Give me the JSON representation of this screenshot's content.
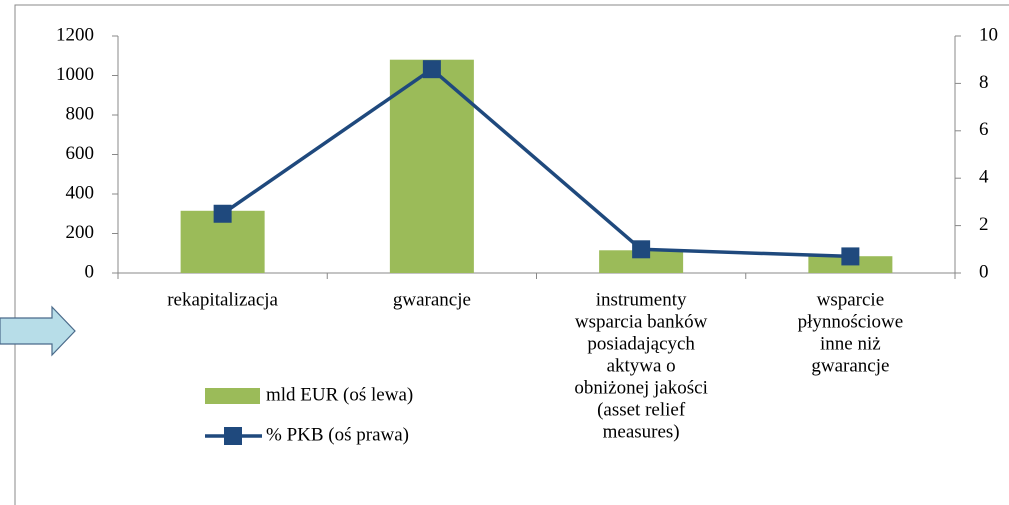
{
  "chart_data": {
    "type": "bar_line",
    "categories": [
      [
        "rekapitalizacja"
      ],
      [
        "gwarancje"
      ],
      [
        "instrumenty",
        "wsparcia banków",
        "posiadających",
        "aktywa o",
        "obniżonej jakości",
        "(asset relief",
        "measures)"
      ],
      [
        "wsparcie",
        "płynnościowe",
        "inne niż",
        "gwarancje"
      ]
    ],
    "series": [
      {
        "name": "mld EUR (oś lewa)",
        "type": "bar",
        "color": "#9bbb59",
        "values": [
          315,
          1080,
          115,
          85
        ]
      },
      {
        "name": "% PKB (oś prawa)",
        "type": "line",
        "axis": "y2",
        "color": "#1f497d",
        "values": [
          2.5,
          8.6,
          1.0,
          0.7
        ]
      }
    ],
    "ylim": [
      0,
      1200
    ],
    "yticks": [
      0,
      200,
      400,
      600,
      800,
      1000,
      1200
    ],
    "y2lim": [
      0,
      10
    ],
    "y2ticks": [
      0,
      2,
      4,
      6,
      8,
      10
    ],
    "grid": false
  }
}
